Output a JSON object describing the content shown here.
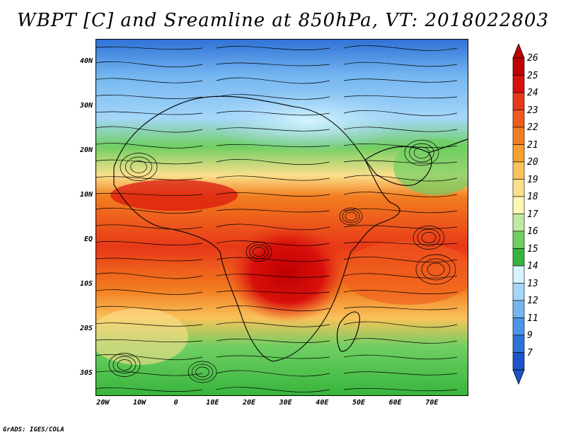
{
  "title": "WBPT [C] and Sreamline at 850hPa, VT: 2018022803",
  "footer": "GrADS: IGES/COLA",
  "lat_labels": [
    "40N",
    "30N",
    "20N",
    "10N",
    "EQ",
    "10S",
    "20S",
    "30S"
  ],
  "lat_values": [
    40,
    30,
    20,
    10,
    0,
    -10,
    -20,
    -30
  ],
  "lon_labels": [
    "20W",
    "10W",
    "0",
    "10E",
    "20E",
    "30E",
    "40E",
    "50E",
    "60E",
    "70E"
  ],
  "lon_values": [
    -20,
    -10,
    0,
    10,
    20,
    30,
    40,
    50,
    60,
    70
  ],
  "extent": {
    "lon": [
      -22,
      80
    ],
    "lat": [
      -35,
      45
    ]
  },
  "colorbar": {
    "levels": [
      "26",
      "25",
      "24",
      "23",
      "22",
      "21",
      "20",
      "19",
      "18",
      "17",
      "16",
      "15",
      "14",
      "13",
      "12",
      "11",
      "9",
      "7"
    ],
    "colors": [
      "#c00000",
      "#d8100c",
      "#e83818",
      "#f05a1e",
      "#f27d20",
      "#f6a030",
      "#f9c25a",
      "#fbe08c",
      "#fff7b4",
      "#bfe9a0",
      "#6fcf62",
      "#36b43c",
      "#d6f5ff",
      "#a4d6f9",
      "#74b6f0",
      "#4b94e6",
      "#2f72d6",
      "#1c53c8"
    ],
    "top_arrow_color": "#c00000",
    "bottom_arrow_color": "#1c53c8"
  },
  "colors": {
    "ocean_warm": "#e05a20",
    "ocean_cool": "#9dd5f5",
    "land_hot": "#cc2a10",
    "land_mild": "#58c152",
    "land_cold": "#4a8fe0"
  }
}
